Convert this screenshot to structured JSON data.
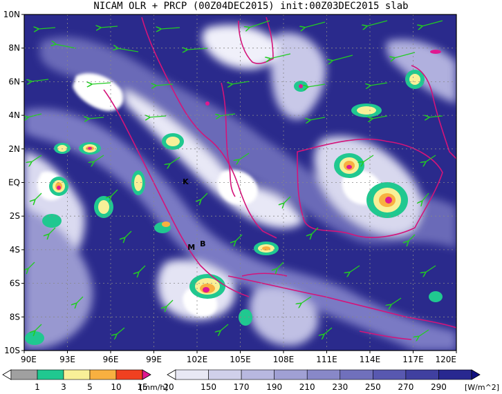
{
  "title": "NICAM OLR + PRCP (00Z04DEC2015) init:00Z03DEC2015 slab",
  "map": {
    "lat_labels": [
      "10N",
      "8N",
      "6N",
      "4N",
      "2N",
      "EQ",
      "2S",
      "4S",
      "6S",
      "8S",
      "10S"
    ],
    "lon_labels": [
      "90E",
      "93E",
      "96E",
      "99E",
      "102E",
      "105E",
      "108E",
      "111E",
      "114E",
      "117E",
      "120E"
    ],
    "site_markers": [
      {
        "label": "K",
        "lon": 101.2,
        "lat": -0.1
      },
      {
        "label": "M",
        "lon": 101.6,
        "lat": -4.0
      },
      {
        "label": "B",
        "lon": 102.4,
        "lat": -3.8
      }
    ],
    "colors": {
      "coast": "#d4147a",
      "wind": "#22cc22",
      "grid": "#888888"
    }
  },
  "precip_legend": {
    "ticks": [
      "1",
      "3",
      "5",
      "10",
      "15",
      "20"
    ],
    "unit": "[mm/h]",
    "colors": [
      "#ffffff",
      "#a0a0a0",
      "#20c890",
      "#f8f098",
      "#f8b040",
      "#f04020",
      "#e01890"
    ]
  },
  "olr_legend": {
    "ticks": [
      "150",
      "170",
      "190",
      "210",
      "230",
      "250",
      "270",
      "290"
    ],
    "unit": "[W/m^2]",
    "colors": [
      "#ffffff",
      "#e8e8f4",
      "#d0d0ea",
      "#b8b8e0",
      "#a0a0d4",
      "#8888c8",
      "#7070bc",
      "#5858b0",
      "#4040a0",
      "#282890",
      "#101080"
    ]
  }
}
